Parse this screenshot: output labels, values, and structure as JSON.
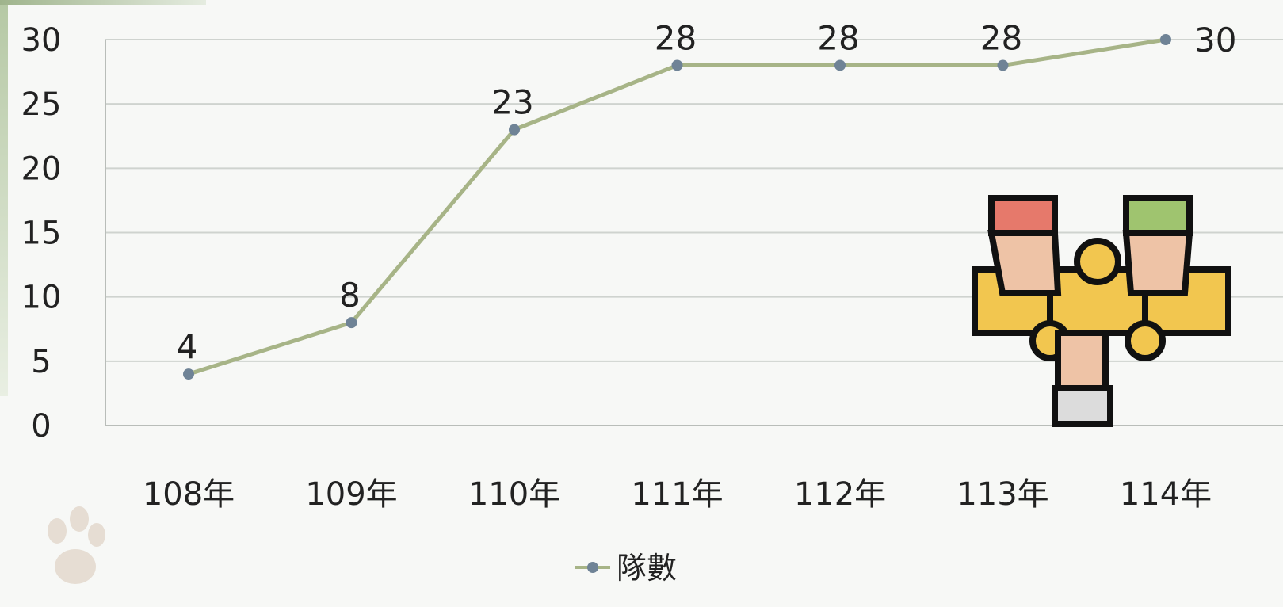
{
  "chart_data": {
    "type": "line",
    "categories": [
      "108年",
      "109年",
      "110年",
      "111年",
      "112年",
      "113年",
      "114年"
    ],
    "series": [
      {
        "name": "隊數",
        "values": [
          4,
          8,
          23,
          28,
          28,
          28,
          30
        ],
        "color": "#a7b487",
        "marker_color": "#6f8396"
      }
    ],
    "ylim": [
      0,
      30
    ],
    "yticks": [
      0,
      5,
      10,
      15,
      20,
      25,
      30
    ],
    "grid": true,
    "legend_position": "bottom",
    "data_labels": true
  },
  "colors": {
    "gridline": "#cfd3cf",
    "background": "#f7f8f6"
  },
  "icons": {
    "illustration": "puzzle-hands-icon",
    "decoration": "paw-print-icon"
  }
}
